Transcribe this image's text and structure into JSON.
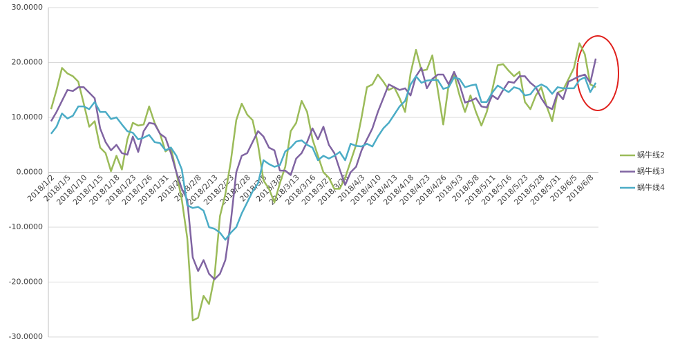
{
  "chart_data": {
    "type": "line",
    "categories": [
      "2018/1/2",
      null,
      null,
      "2018/1/5",
      null,
      null,
      "2018/1/10",
      null,
      null,
      "2018/1/15",
      null,
      null,
      "2018/1/18",
      null,
      null,
      "2018/1/23",
      null,
      null,
      "2018/1/26",
      null,
      null,
      "2018/1/31",
      null,
      null,
      "2018/2/5",
      null,
      null,
      "2018/2/8",
      null,
      null,
      "2018/2/13",
      null,
      null,
      "2018/2/23",
      null,
      null,
      "2018/2/28",
      null,
      null,
      "2018/3/5",
      null,
      null,
      "2018/3/8",
      null,
      null,
      "2018/3/13",
      null,
      null,
      "2018/3/16",
      null,
      null,
      "2018/3/21",
      null,
      null,
      "2018/3/26",
      null,
      null,
      "2018/4/3",
      null,
      null,
      "2018/4/10",
      null,
      null,
      "2018/4/13",
      null,
      null,
      "2018/4/18",
      null,
      null,
      "2018/4/23",
      null,
      null,
      "2018/4/26",
      null,
      null,
      "2018/5/3",
      null,
      null,
      "2018/5/8",
      null,
      null,
      "2018/5/11",
      null,
      null,
      "2018/5/16",
      null,
      null,
      "2018/5/23",
      null,
      null,
      "2018/5/28",
      null,
      null,
      "2018/5/31",
      null,
      null,
      "2018/6/5",
      null,
      null,
      "2018/6/8",
      null
    ],
    "series": [
      {
        "name": "蜗牛线2",
        "color": "#9bbb59",
        "values": [
          11.5,
          15,
          19,
          18,
          17.5,
          16.5,
          12.5,
          8.3,
          9.3,
          4.5,
          3.5,
          0.2,
          3,
          0.5,
          6,
          9,
          8.5,
          8.7,
          12,
          9,
          7,
          3.8,
          4.5,
          0,
          -5,
          -12,
          -27,
          -26.5,
          -22.5,
          -24,
          -19,
          -8,
          -4,
          2,
          9.5,
          12.5,
          10.5,
          9.5,
          5,
          -1.5,
          -3,
          -5.5,
          -2,
          1,
          7.5,
          9,
          13,
          11,
          6,
          3,
          0,
          -1,
          -3,
          -3,
          -1,
          2,
          5,
          10,
          15.5,
          16,
          17.8,
          16.5,
          15,
          15.5,
          13.5,
          11,
          18,
          22.3,
          18.5,
          18.7,
          21.3,
          15,
          8.7,
          16,
          17.8,
          14,
          11,
          14,
          11,
          8.5,
          11,
          15,
          19.5,
          19.7,
          18.5,
          17.5,
          18.3,
          12.8,
          11.5,
          14,
          15.5,
          12,
          9.3,
          14.5,
          15,
          17,
          19,
          23.5,
          21.5,
          16,
          15.5
        ]
      },
      {
        "name": "蜗牛线3",
        "color": "#8064a2",
        "values": [
          9.3,
          11,
          13,
          15,
          14.8,
          15.5,
          15.5,
          14.5,
          13.5,
          8,
          5.5,
          4,
          5,
          3.5,
          3.2,
          6.5,
          3.7,
          7.5,
          9,
          8.8,
          7,
          6.3,
          3.5,
          0,
          -3,
          -5,
          -15.5,
          -18,
          -16,
          -18.5,
          -19.5,
          -18.5,
          -16,
          -9,
          0,
          3,
          3.5,
          5.5,
          7.5,
          6.5,
          4.5,
          4,
          0.3,
          0.3,
          -0.5,
          2.5,
          3.5,
          5.5,
          8,
          6,
          8.3,
          5,
          3.5,
          0.5,
          -2.3,
          0,
          1,
          4,
          6,
          8,
          11,
          13.5,
          16,
          15.5,
          15,
          15.3,
          14,
          17.5,
          19,
          15.3,
          17,
          17.8,
          17.8,
          16,
          18.3,
          16,
          12.7,
          13,
          13.5,
          12,
          11.8,
          14,
          13.3,
          15,
          16.5,
          16.3,
          17.5,
          17.5,
          16.3,
          15.5,
          13.5,
          12,
          11.5,
          14.5,
          13.3,
          16.5,
          17,
          17.5,
          17.8,
          16.3,
          20.7
        ]
      },
      {
        "name": "蜗牛线4",
        "color": "#4bacc6",
        "values": [
          7,
          8.3,
          10.7,
          9.8,
          10.3,
          12,
          12,
          11.5,
          12.8,
          11,
          11,
          9.7,
          10,
          8.7,
          7.5,
          7.2,
          6,
          6.3,
          6.8,
          5.5,
          5.3,
          4,
          4.5,
          3,
          0.5,
          -6,
          -6.5,
          -6.3,
          -7,
          -10,
          -10.3,
          -11,
          -12.3,
          -11,
          -10,
          -7.5,
          -5.5,
          -3.5,
          -2,
          2.2,
          1.5,
          1,
          1.3,
          3.8,
          4.5,
          5.6,
          5.8,
          5,
          4.5,
          2.2,
          3,
          2.5,
          3,
          3.7,
          2.2,
          5.2,
          4.8,
          4.7,
          5.2,
          4.7,
          6.5,
          8,
          9,
          10.5,
          12,
          13,
          16,
          17.5,
          16.3,
          16.7,
          16.8,
          16.8,
          15.2,
          15.5,
          17.3,
          17,
          15.5,
          15.8,
          16,
          12.8,
          12.8,
          14.5,
          15.8,
          15.2,
          14.6,
          15.5,
          15.2,
          14,
          14.2,
          15.5,
          16,
          15.5,
          14.3,
          15.5,
          15.3,
          15.3,
          15.3,
          16.8,
          17.3,
          14.6,
          16.3
        ]
      }
    ],
    "ylim": [
      -30,
      30
    ],
    "yticks": [
      {
        "value": -30,
        "label": "-30.0000"
      },
      {
        "value": -20,
        "label": "-20.0000"
      },
      {
        "value": -10,
        "label": "-10.0000"
      },
      {
        "value": 0,
        "label": "0.0000"
      },
      {
        "value": 10,
        "label": "10.0000"
      },
      {
        "value": 20,
        "label": "20.0000"
      },
      {
        "value": 30,
        "label": "30.0000"
      }
    ],
    "grid": true,
    "legend": "right"
  }
}
